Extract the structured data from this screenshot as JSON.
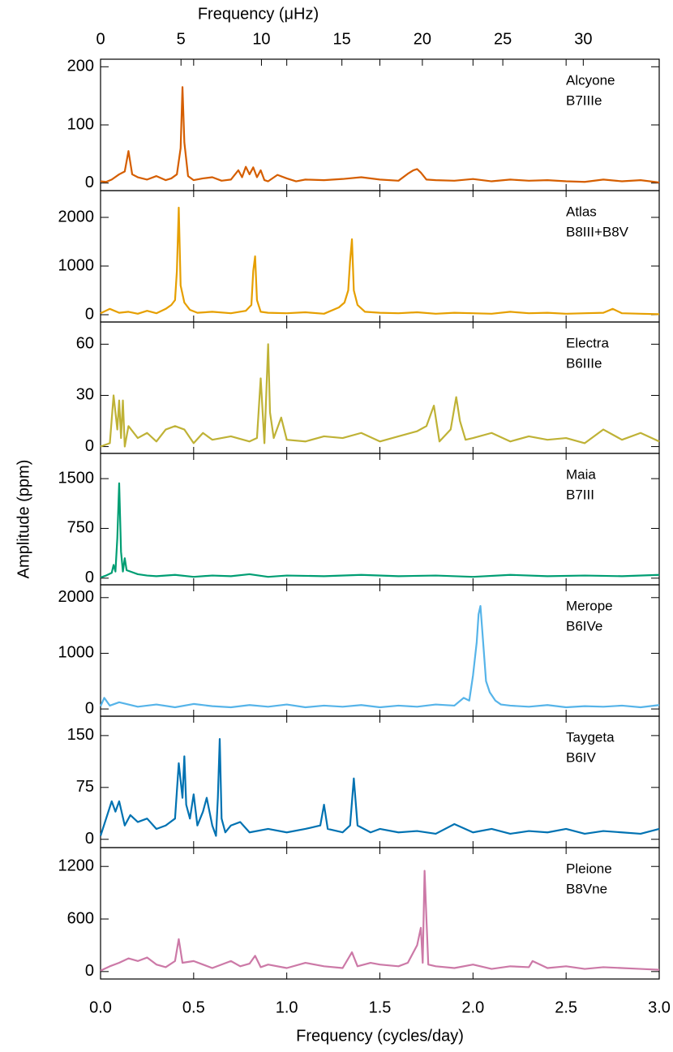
{
  "chart_data": [
    {
      "type": "line",
      "x2label": "Frequency (μHz)",
      "x2lim": [
        0,
        34.72
      ],
      "x2ticks": [
        0,
        5,
        10,
        15,
        20,
        25,
        30
      ],
      "annotation": "B7IIIe",
      "xlim": [
        0,
        3
      ],
      "xticks": [
        {
          "value": 0,
          "label": "0.0"
        },
        0.5,
        {
          "value": 1,
          "label": "1.0"
        },
        1.5,
        {
          "value": 2,
          "label": "2.0"
        },
        2.5,
        {
          "value": 3,
          "label": "3.0"
        }
      ],
      "ylim": [
        -13,
        213
      ],
      "yticks": [
        0,
        100,
        200
      ],
      "x": [
        0,
        0.03,
        0.06,
        0.1,
        0.13,
        0.15,
        0.17,
        0.2,
        0.25,
        0.3,
        0.35,
        0.38,
        0.41,
        0.43,
        0.44,
        0.45,
        0.47,
        0.5,
        0.55,
        0.6,
        0.65,
        0.7,
        0.74,
        0.76,
        0.78,
        0.8,
        0.82,
        0.84,
        0.86,
        0.88,
        0.9,
        0.95,
        1.0,
        1.05,
        1.1,
        1.2,
        1.3,
        1.4,
        1.5,
        1.6,
        1.65,
        1.68,
        1.7,
        1.72,
        1.75,
        1.8,
        1.9,
        2.0,
        2.1,
        2.2,
        2.3,
        2.4,
        2.5,
        2.6,
        2.7,
        2.8,
        2.9,
        3.0
      ],
      "series": [
        {
          "name": "Alcyone",
          "color": "#d55e00",
          "values": [
            3,
            2,
            6,
            15,
            20,
            55,
            15,
            10,
            6,
            12,
            5,
            8,
            15,
            60,
            165,
            70,
            12,
            5,
            8,
            10,
            4,
            6,
            22,
            10,
            28,
            15,
            27,
            10,
            22,
            5,
            3,
            14,
            8,
            3,
            6,
            5,
            7,
            10,
            6,
            4,
            16,
            22,
            24,
            18,
            6,
            5,
            4,
            7,
            3,
            6,
            4,
            5,
            3,
            2,
            6,
            3,
            5,
            1
          ]
        }
      ]
    },
    {
      "type": "line",
      "annotation": "B8III+B8V",
      "xlim": [
        0,
        3
      ],
      "xticks": [
        {
          "value": 0,
          "label": "0.0"
        },
        0.5,
        {
          "value": 1,
          "label": "1.0"
        },
        1.5,
        {
          "value": 2,
          "label": "2.0"
        },
        2.5,
        {
          "value": 3,
          "label": "3.0"
        }
      ],
      "ylim": [
        -150,
        2550
      ],
      "yticks": [
        0,
        1000,
        2000
      ],
      "x": [
        0,
        0.05,
        0.1,
        0.15,
        0.2,
        0.25,
        0.3,
        0.35,
        0.38,
        0.4,
        0.41,
        0.42,
        0.43,
        0.45,
        0.48,
        0.52,
        0.6,
        0.7,
        0.78,
        0.81,
        0.82,
        0.83,
        0.84,
        0.86,
        0.9,
        1.0,
        1.1,
        1.2,
        1.28,
        1.31,
        1.33,
        1.34,
        1.35,
        1.36,
        1.38,
        1.42,
        1.5,
        1.6,
        1.7,
        1.8,
        1.9,
        2.0,
        2.1,
        2.2,
        2.3,
        2.4,
        2.5,
        2.6,
        2.7,
        2.75,
        2.8,
        2.9,
        3.0
      ],
      "series": [
        {
          "name": "Atlas",
          "color": "#e69f00",
          "values": [
            30,
            120,
            40,
            60,
            20,
            80,
            30,
            120,
            200,
            300,
            900,
            2200,
            600,
            250,
            100,
            40,
            60,
            30,
            80,
            200,
            900,
            1200,
            300,
            60,
            40,
            30,
            50,
            20,
            150,
            250,
            500,
            1100,
            1550,
            500,
            200,
            60,
            40,
            30,
            50,
            20,
            40,
            30,
            20,
            60,
            30,
            40,
            20,
            30,
            40,
            120,
            30,
            20,
            10
          ]
        }
      ]
    },
    {
      "type": "line",
      "annotation": "B6IIIe",
      "xlim": [
        0,
        3
      ],
      "xticks": [
        {
          "value": 0,
          "label": "0.0"
        },
        0.5,
        {
          "value": 1,
          "label": "1.0"
        },
        1.5,
        {
          "value": 2,
          "label": "2.0"
        },
        2.5,
        {
          "value": 3,
          "label": "3.0"
        }
      ],
      "ylim": [
        -4,
        73
      ],
      "yticks": [
        0,
        30,
        60
      ],
      "x": [
        0,
        0.05,
        0.07,
        0.09,
        0.1,
        0.11,
        0.12,
        0.13,
        0.15,
        0.2,
        0.25,
        0.3,
        0.35,
        0.4,
        0.45,
        0.5,
        0.55,
        0.6,
        0.7,
        0.8,
        0.84,
        0.86,
        0.88,
        0.9,
        0.91,
        0.93,
        0.97,
        1.0,
        1.1,
        1.2,
        1.3,
        1.4,
        1.5,
        1.6,
        1.7,
        1.75,
        1.79,
        1.82,
        1.88,
        1.91,
        1.93,
        1.96,
        2.0,
        2.1,
        2.2,
        2.3,
        2.4,
        2.5,
        2.6,
        2.7,
        2.8,
        2.9,
        3.0
      ],
      "series": [
        {
          "name": "Electra",
          "color": "#bfb236",
          "values": [
            0,
            2,
            30,
            10,
            27,
            5,
            27,
            0,
            12,
            5,
            8,
            3,
            10,
            12,
            10,
            2,
            8,
            4,
            6,
            3,
            5,
            40,
            2,
            60,
            20,
            5,
            17,
            4,
            3,
            6,
            5,
            8,
            3,
            6,
            9,
            12,
            24,
            3,
            10,
            29,
            15,
            4,
            5,
            8,
            3,
            6,
            4,
            5,
            2,
            10,
            4,
            8,
            3
          ]
        }
      ]
    },
    {
      "type": "line",
      "ylabel": "Amplitude (ppm)",
      "annotation": "B7III",
      "xlim": [
        0,
        3
      ],
      "xticks": [
        {
          "value": 0,
          "label": "0.0"
        },
        0.5,
        {
          "value": 1,
          "label": "1.0"
        },
        1.5,
        {
          "value": 2,
          "label": "2.0"
        },
        2.5,
        {
          "value": 3,
          "label": "3.0"
        }
      ],
      "ylim": [
        -100,
        1880
      ],
      "yticks": [
        0,
        750,
        1500
      ],
      "x": [
        0,
        0.03,
        0.06,
        0.07,
        0.08,
        0.09,
        0.1,
        0.11,
        0.12,
        0.13,
        0.14,
        0.16,
        0.2,
        0.25,
        0.3,
        0.4,
        0.5,
        0.6,
        0.7,
        0.8,
        0.9,
        1.0,
        1.2,
        1.4,
        1.6,
        1.8,
        2.0,
        2.2,
        2.4,
        2.6,
        2.8,
        3.0
      ],
      "series": [
        {
          "name": "Maia",
          "color": "#009e73",
          "values": [
            10,
            40,
            80,
            200,
            100,
            600,
            1430,
            400,
            100,
            300,
            120,
            100,
            60,
            40,
            30,
            50,
            20,
            40,
            30,
            60,
            20,
            40,
            30,
            50,
            30,
            40,
            20,
            50,
            30,
            40,
            30,
            50
          ]
        }
      ]
    },
    {
      "type": "line",
      "annotation": "B6IVe",
      "xlim": [
        0,
        3
      ],
      "xticks": [
        {
          "value": 0,
          "label": "0.0"
        },
        0.5,
        {
          "value": 1,
          "label": "1.0"
        },
        1.5,
        {
          "value": 2,
          "label": "2.0"
        },
        2.5,
        {
          "value": 3,
          "label": "3.0"
        }
      ],
      "ylim": [
        -130,
        2230
      ],
      "yticks": [
        0,
        1000,
        2000
      ],
      "x": [
        0,
        0.02,
        0.05,
        0.1,
        0.2,
        0.3,
        0.4,
        0.5,
        0.6,
        0.7,
        0.8,
        0.9,
        1.0,
        1.1,
        1.2,
        1.3,
        1.4,
        1.5,
        1.6,
        1.7,
        1.8,
        1.9,
        1.95,
        1.98,
        2.0,
        2.02,
        2.03,
        2.04,
        2.05,
        2.07,
        2.09,
        2.12,
        2.15,
        2.2,
        2.3,
        2.4,
        2.5,
        2.6,
        2.7,
        2.8,
        2.9,
        3.0
      ],
      "series": [
        {
          "name": "Merope",
          "color": "#56b4e9",
          "values": [
            50,
            200,
            60,
            120,
            40,
            80,
            30,
            90,
            50,
            30,
            70,
            40,
            80,
            30,
            60,
            40,
            70,
            30,
            60,
            40,
            80,
            60,
            200,
            150,
            600,
            1200,
            1700,
            1850,
            1400,
            500,
            300,
            150,
            80,
            60,
            40,
            70,
            30,
            50,
            40,
            60,
            30,
            70
          ]
        }
      ]
    },
    {
      "type": "line",
      "annotation": "B6IV",
      "xlim": [
        0,
        3
      ],
      "xticks": [
        {
          "value": 0,
          "label": "0.0"
        },
        0.5,
        {
          "value": 1,
          "label": "1.0"
        },
        1.5,
        {
          "value": 2,
          "label": "2.0"
        },
        2.5,
        {
          "value": 3,
          "label": "3.0"
        }
      ],
      "ylim": [
        -12,
        178
      ],
      "yticks": [
        0,
        75,
        150
      ],
      "x": [
        0,
        0.03,
        0.06,
        0.08,
        0.1,
        0.13,
        0.16,
        0.2,
        0.25,
        0.3,
        0.35,
        0.4,
        0.42,
        0.44,
        0.45,
        0.46,
        0.48,
        0.5,
        0.52,
        0.55,
        0.57,
        0.6,
        0.62,
        0.63,
        0.64,
        0.65,
        0.67,
        0.7,
        0.75,
        0.8,
        0.9,
        1.0,
        1.1,
        1.18,
        1.2,
        1.22,
        1.3,
        1.34,
        1.36,
        1.38,
        1.45,
        1.5,
        1.6,
        1.7,
        1.8,
        1.9,
        2.0,
        2.1,
        2.2,
        2.3,
        2.4,
        2.5,
        2.6,
        2.7,
        2.8,
        2.9,
        3.0
      ],
      "series": [
        {
          "name": "Taygeta",
          "color": "#0072b2",
          "values": [
            5,
            30,
            55,
            40,
            55,
            20,
            35,
            25,
            30,
            15,
            20,
            30,
            110,
            60,
            120,
            50,
            30,
            65,
            20,
            40,
            60,
            20,
            5,
            60,
            145,
            30,
            10,
            20,
            25,
            10,
            15,
            10,
            15,
            20,
            50,
            15,
            10,
            20,
            88,
            20,
            10,
            15,
            10,
            12,
            8,
            22,
            10,
            15,
            8,
            12,
            10,
            15,
            8,
            12,
            10,
            8,
            15
          ]
        }
      ]
    },
    {
      "type": "line",
      "xlabel": "Frequency (cycles/day)",
      "annotation": "B8Vne",
      "xlim": [
        0,
        3
      ],
      "xticks": [
        {
          "value": 0,
          "label": "0.0"
        },
        0.5,
        {
          "value": 1,
          "label": "1.0"
        },
        1.5,
        {
          "value": 2,
          "label": "2.0"
        },
        2.5,
        {
          "value": 3,
          "label": "3.0"
        }
      ],
      "ylim": [
        -85,
        1415
      ],
      "yticks": [
        0,
        600,
        1200
      ],
      "x": [
        0,
        0.05,
        0.1,
        0.15,
        0.2,
        0.25,
        0.3,
        0.35,
        0.4,
        0.42,
        0.44,
        0.5,
        0.55,
        0.6,
        0.7,
        0.75,
        0.8,
        0.83,
        0.86,
        0.9,
        1.0,
        1.1,
        1.2,
        1.3,
        1.35,
        1.38,
        1.45,
        1.5,
        1.6,
        1.65,
        1.7,
        1.72,
        1.73,
        1.74,
        1.75,
        1.76,
        1.8,
        1.9,
        2.0,
        2.1,
        2.2,
        2.3,
        2.32,
        2.4,
        2.5,
        2.6,
        2.7,
        2.8,
        2.9,
        3.0
      ],
      "series": [
        {
          "name": "Pleione",
          "color": "#cc79a7",
          "values": [
            10,
            60,
            100,
            150,
            120,
            160,
            80,
            50,
            120,
            370,
            100,
            120,
            80,
            40,
            120,
            60,
            90,
            180,
            50,
            80,
            40,
            100,
            60,
            40,
            220,
            60,
            100,
            80,
            60,
            100,
            300,
            500,
            100,
            1150,
            600,
            80,
            60,
            40,
            80,
            30,
            60,
            50,
            120,
            40,
            60,
            30,
            50,
            40,
            30,
            20
          ]
        }
      ]
    }
  ]
}
